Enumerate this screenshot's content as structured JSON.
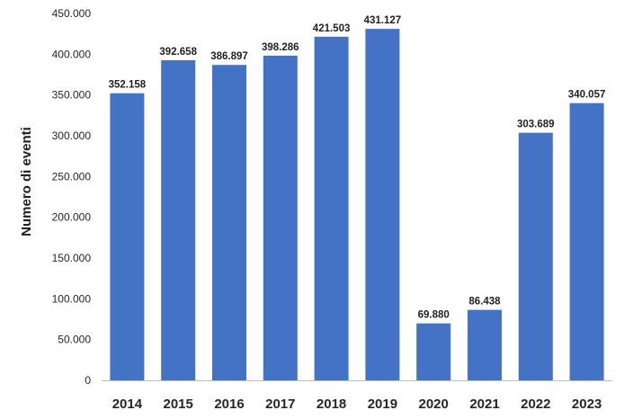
{
  "chart_data": {
    "type": "bar",
    "title": "",
    "xlabel": "",
    "ylabel": "Numero di eventi",
    "categories": [
      "2014",
      "2015",
      "2016",
      "2017",
      "2018",
      "2019",
      "2020",
      "2021",
      "2022",
      "2023"
    ],
    "values": [
      352158,
      392658,
      386897,
      398286,
      421503,
      431127,
      69880,
      86438,
      303689,
      340057
    ],
    "data_labels": [
      "352.158",
      "392.658",
      "386.897",
      "398.286",
      "421.503",
      "431.127",
      "69.880",
      "86.438",
      "303.689",
      "340.057"
    ],
    "ylim": [
      0,
      450000
    ],
    "yticks": [
      0,
      50000,
      100000,
      150000,
      200000,
      250000,
      300000,
      350000,
      400000,
      450000
    ],
    "ytick_labels": [
      "0",
      "50.000",
      "100.000",
      "150.000",
      "200.000",
      "250.000",
      "300.000",
      "350.000",
      "400.000",
      "450.000"
    ],
    "grid": false,
    "legend": "none",
    "bar_color": "#4472C4",
    "axis_color": "#BFBFBF"
  }
}
